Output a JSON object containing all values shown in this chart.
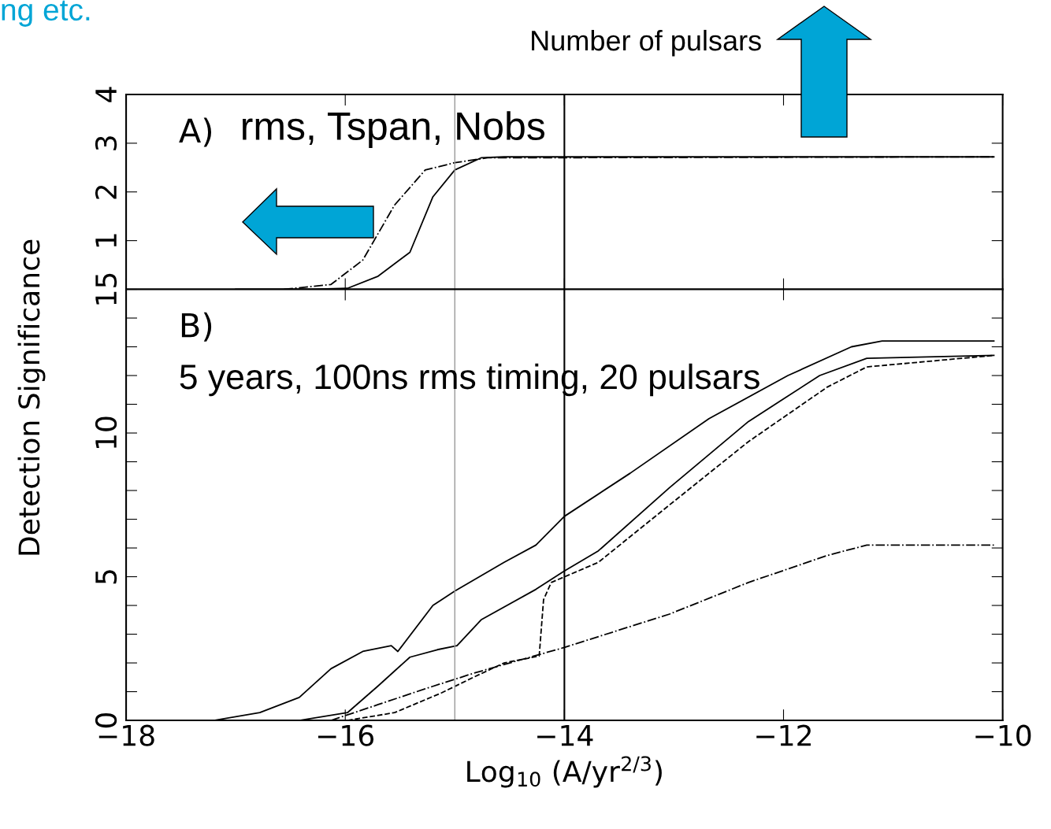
{
  "chart_data": [
    {
      "type": "line",
      "title": "Number of pulsars",
      "subtitle": "ng etc.",
      "annotations": [
        "A)",
        "rms, Tspan, Nobs"
      ],
      "xlim": [
        -18,
        -10
      ],
      "xticks": [
        {
          "value": -18,
          "label": null
        },
        {
          "value": -16,
          "label": null
        },
        {
          "value": -14,
          "label": null
        },
        {
          "value": -12,
          "label": null
        },
        {
          "value": -10,
          "label": null
        }
      ],
      "ylim": [
        0,
        4
      ],
      "yticks": [
        1,
        2,
        3,
        4
      ],
      "tick_labels": "y",
      "grid": false,
      "legend": false,
      "ref_lines": [
        {
          "axis": "x",
          "value": -15,
          "color": "#999999"
        },
        {
          "axis": "x",
          "value": -14,
          "color": "#000000"
        }
      ],
      "series": [
        {
          "color": "#000000",
          "line_style": "solid",
          "x": [
            -17.0,
            -16.3,
            -15.98,
            -15.7,
            -15.41,
            -15.2,
            -15.0,
            -14.76,
            -14.55,
            -10.08
          ],
          "values": [
            0,
            0,
            0.02,
            0.27,
            0.76,
            1.9,
            2.45,
            2.7,
            2.72,
            2.72
          ]
        },
        {
          "color": "#000000",
          "line_style": "dashdot",
          "x": [
            -16.56,
            -16.13,
            -15.84,
            -15.55,
            -15.27,
            -15.0,
            -14.7,
            -10.08
          ],
          "values": [
            0,
            0.1,
            0.6,
            1.73,
            2.45,
            2.6,
            2.7,
            2.72
          ]
        }
      ]
    },
    {
      "type": "line",
      "xlabel": "Log$_{10}$ (A/yr$^{2/3}$)",
      "ylabel": "Detection Significance",
      "annotations": [
        "B)",
        "5 years, 100ns rms timing, 20 pulsars"
      ],
      "xlim": [
        -18,
        -10
      ],
      "xticks": [
        {
          "value": -18,
          "label": "−18"
        },
        {
          "value": -16,
          "label": "−16"
        },
        {
          "value": -14,
          "label": "−14"
        },
        {
          "value": -12,
          "label": "−12"
        },
        {
          "value": -10,
          "label": "−10"
        }
      ],
      "ylim": [
        0,
        15
      ],
      "yticks": [
        0,
        {
          "value": 1,
          "label": null
        },
        {
          "value": 2,
          "label": null
        },
        {
          "value": 3,
          "label": null
        },
        {
          "value": 4,
          "label": null
        },
        5,
        {
          "value": 6,
          "label": null
        },
        {
          "value": 7,
          "label": null
        },
        {
          "value": 8,
          "label": null
        },
        {
          "value": 9,
          "label": null
        },
        10,
        {
          "value": 11,
          "label": null
        },
        {
          "value": 12,
          "label": null
        },
        {
          "value": 13,
          "label": null
        },
        {
          "value": 14,
          "label": null
        },
        15
      ],
      "grid": false,
      "legend": false,
      "ref_lines": [
        {
          "axis": "x",
          "value": -15,
          "color": "#999999"
        },
        {
          "axis": "x",
          "value": -14,
          "color": "#000000"
        }
      ],
      "series": [
        {
          "color": "#000000",
          "line_style": "solid",
          "x": [
            -17.2,
            -16.78,
            -16.42,
            -16.13,
            -15.84,
            -15.58,
            -15.52,
            -15.2,
            -15.0,
            -14.55,
            -14.26,
            -14.0,
            -13.4,
            -12.68,
            -11.96,
            -11.38,
            -11.1,
            -10.08
          ],
          "values": [
            0,
            0.27,
            0.8,
            1.8,
            2.4,
            2.6,
            2.4,
            4.0,
            4.5,
            5.5,
            6.1,
            7.1,
            8.6,
            10.5,
            12.0,
            13.0,
            13.2,
            13.2
          ]
        },
        {
          "color": "#000000",
          "line_style": "solid",
          "x": [
            -16.42,
            -15.98,
            -15.7,
            -15.41,
            -15.16,
            -14.98,
            -14.76,
            -14.26,
            -14.0,
            -13.69,
            -13.04,
            -12.32,
            -11.67,
            -11.24,
            -10.08
          ],
          "values": [
            0,
            0.27,
            1.2,
            2.2,
            2.46,
            2.6,
            3.5,
            4.56,
            5.2,
            5.9,
            8.1,
            10.4,
            12.0,
            12.6,
            12.7
          ]
        },
        {
          "color": "#000000",
          "line_style": "dashed",
          "x": [
            -15.98,
            -15.55,
            -15.12,
            -14.83,
            -14.55,
            -14.23,
            -14.19,
            -14.12,
            -13.69,
            -13.04,
            -12.32,
            -11.6,
            -11.24,
            -10.08
          ],
          "values": [
            0,
            0.27,
            0.96,
            1.5,
            2.0,
            2.24,
            4.2,
            4.8,
            5.5,
            7.5,
            9.7,
            11.6,
            12.3,
            12.7
          ]
        },
        {
          "color": "#000000",
          "line_style": "dashdot",
          "x": [
            -16.13,
            -15.7,
            -15.27,
            -14.83,
            -14.0,
            -13.04,
            -12.32,
            -11.6,
            -11.24,
            -10.08
          ],
          "values": [
            0,
            0.55,
            1.1,
            1.64,
            2.54,
            3.7,
            4.8,
            5.74,
            6.1,
            6.1
          ]
        }
      ]
    }
  ]
}
